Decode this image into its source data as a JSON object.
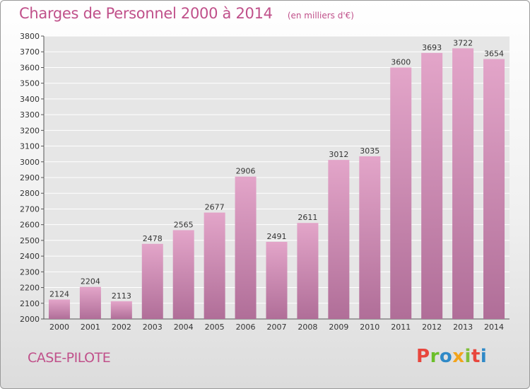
{
  "header": {
    "title": "Charges de Personnel 2000 à 2014",
    "unit": "(en milliers d'€)"
  },
  "footer": {
    "town": "CASE-PILOTE",
    "logo": "Proxiti"
  },
  "colors": {
    "accent": "#c0508a",
    "bar_top": "#e3a5c9",
    "bar_bottom": "#b06e98"
  },
  "chart_data": {
    "type": "bar",
    "title": "Charges de Personnel 2000 à 2014",
    "subtitle": "(en milliers d'€)",
    "xlabel": "",
    "ylabel": "",
    "categories": [
      "2000",
      "2001",
      "2002",
      "2003",
      "2004",
      "2005",
      "2006",
      "2007",
      "2008",
      "2009",
      "2010",
      "2011",
      "2012",
      "2013",
      "2014"
    ],
    "values": [
      2124,
      2204,
      2113,
      2478,
      2565,
      2677,
      2906,
      2491,
      2611,
      3012,
      3035,
      3600,
      3693,
      3722,
      3654
    ],
    "ylim": [
      2000,
      3800
    ],
    "ytick_step": 100,
    "grid": true,
    "legend": "none"
  }
}
